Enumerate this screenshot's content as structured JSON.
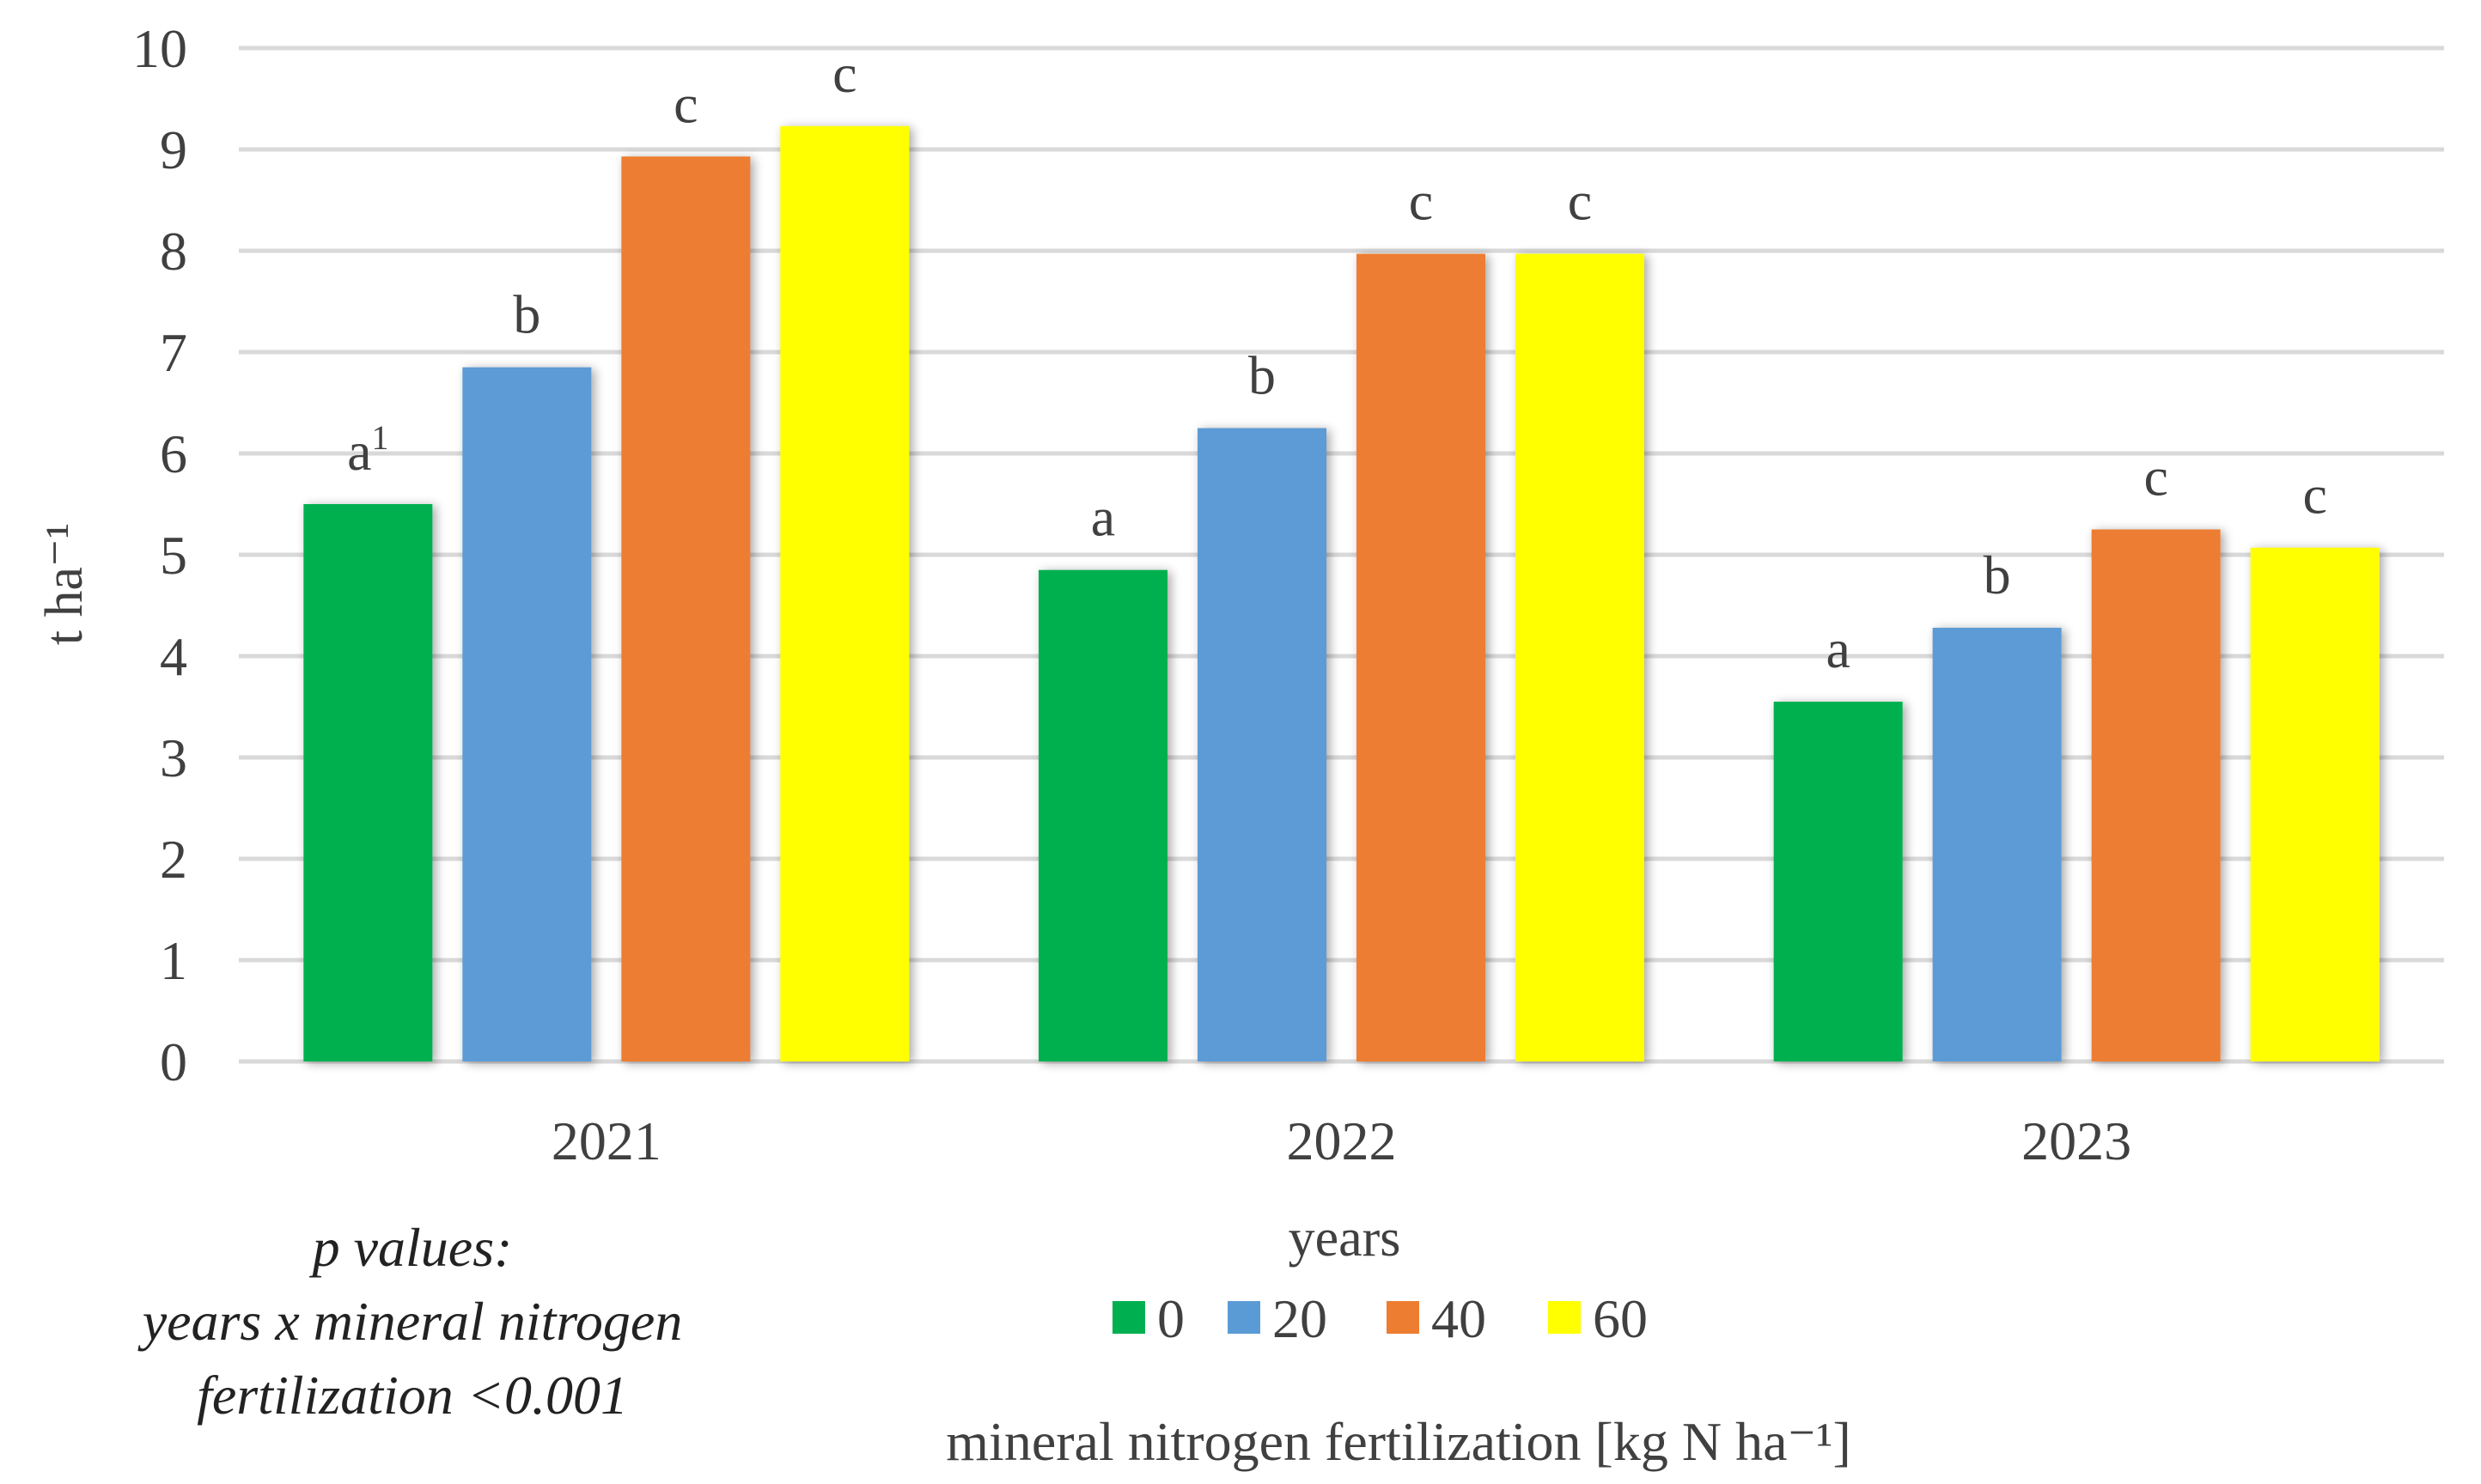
{
  "chart_data": {
    "type": "bar",
    "categories": [
      "2021",
      "2022",
      "2023"
    ],
    "series": [
      {
        "name": "0",
        "color": "#00B050",
        "values": [
          5.5,
          4.85,
          3.55
        ],
        "labels": [
          "a",
          "a",
          "a"
        ]
      },
      {
        "name": "20",
        "color": "#5B9BD5",
        "values": [
          6.85,
          6.25,
          4.28
        ],
        "labels": [
          "b",
          "b",
          "b"
        ]
      },
      {
        "name": "40",
        "color": "#ED7D31",
        "values": [
          8.93,
          7.97,
          5.25
        ],
        "labels": [
          "c",
          "c",
          "c"
        ]
      },
      {
        "name": "60",
        "color": "#FFFF00",
        "values": [
          9.23,
          7.97,
          5.07
        ],
        "labels": [
          "c",
          "c",
          "c"
        ]
      }
    ],
    "first_label_superscript": "1",
    "ylabel": "t ha⁻¹",
    "xlabel": "years",
    "legend_title": "mineral nitrogen fertilization [kg N ha⁻¹]",
    "ylim": [
      0,
      10
    ],
    "yticks": [
      "0",
      "1",
      "2",
      "3",
      "4",
      "5",
      "6",
      "7",
      "8",
      "9",
      "10"
    ],
    "grid": true,
    "legend_position": "bottom-center"
  },
  "note": {
    "line1": "p values:",
    "line2": "years x mineral nitrogen",
    "line3": "fertilization <0.001"
  }
}
